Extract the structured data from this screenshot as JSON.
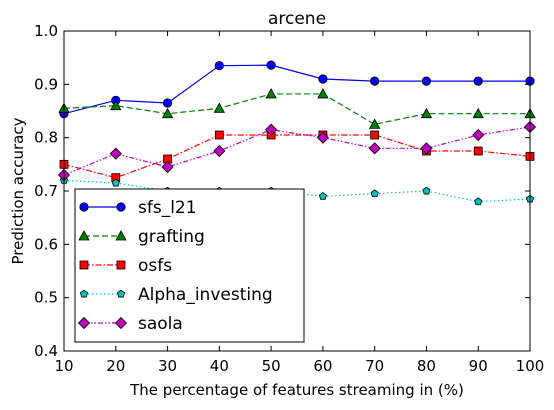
{
  "chart_data": {
    "type": "line",
    "title": "arcene",
    "xlabel": "The percentage of features streaming in (%)",
    "ylabel": "Prediction accuracy",
    "x": [
      10,
      20,
      30,
      40,
      50,
      60,
      70,
      80,
      90,
      100
    ],
    "xlim": [
      10,
      100
    ],
    "ylim": [
      0.4,
      1.0
    ],
    "xticks": [
      "10",
      "20",
      "30",
      "40",
      "50",
      "60",
      "70",
      "80",
      "90",
      "100"
    ],
    "yticks": [
      "0.4",
      "0.5",
      "0.6",
      "0.7",
      "0.8",
      "0.9",
      "1.0"
    ],
    "grid": false,
    "legend_position": "lower-left",
    "series": [
      {
        "name": "sfs_l21",
        "color": "#0000ff",
        "dash": "solid",
        "marker": "circle",
        "values": [
          0.845,
          0.87,
          0.865,
          0.935,
          0.936,
          0.91,
          0.906,
          0.906,
          0.906,
          0.906
        ]
      },
      {
        "name": "grafting",
        "color": "#008000",
        "dash": "dashed",
        "marker": "triangle",
        "values": [
          0.855,
          0.86,
          0.845,
          0.855,
          0.882,
          0.882,
          0.825,
          0.845,
          0.845,
          0.845
        ]
      },
      {
        "name": "osfs",
        "color": "#ff0000",
        "dash": "dashdot",
        "marker": "square",
        "values": [
          0.75,
          0.725,
          0.76,
          0.805,
          0.805,
          0.805,
          0.805,
          0.775,
          0.775,
          0.765
        ]
      },
      {
        "name": "Alpha_investing",
        "color": "#00bfbf",
        "dash": "dotted",
        "marker": "pentagon",
        "values": [
          0.72,
          0.715,
          0.7,
          0.7,
          0.7,
          0.69,
          0.695,
          0.7,
          0.68,
          0.685
        ]
      },
      {
        "name": "saola",
        "color": "#bf00bf",
        "dash": "dashdotdot",
        "marker": "diamond",
        "values": [
          0.73,
          0.77,
          0.745,
          0.775,
          0.815,
          0.8,
          0.78,
          0.78,
          0.805,
          0.82
        ]
      }
    ]
  }
}
